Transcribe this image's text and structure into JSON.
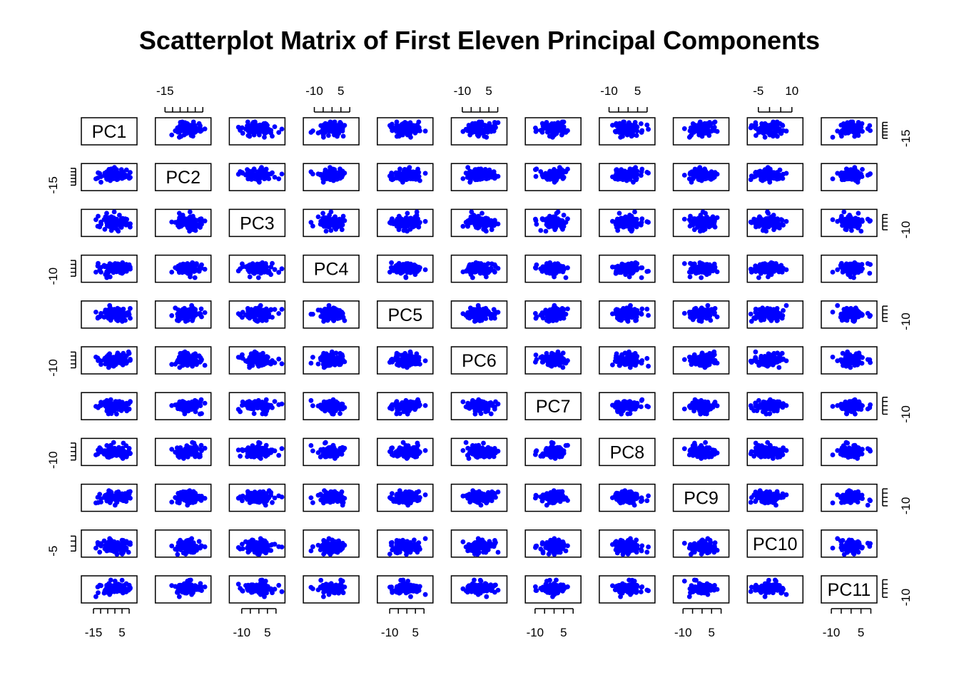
{
  "chart_data": {
    "type": "scatter",
    "title": "Scatterplot Matrix of First Eleven Principal Components",
    "variables": [
      "PC1",
      "PC2",
      "PC3",
      "PC4",
      "PC5",
      "PC6",
      "PC7",
      "PC8",
      "PC9",
      "PC10",
      "PC11"
    ],
    "point_color": "#0000ff",
    "axes": [
      {
        "name": "PC1",
        "range": [
          -22,
          14
        ],
        "ticks": [
          -15,
          -10,
          -5,
          0,
          5,
          10
        ],
        "tick_labels": [
          "-15",
          "5"
        ],
        "label_values": [
          -15,
          5
        ]
      },
      {
        "name": "PC2",
        "range": [
          -20,
          14
        ],
        "ticks": [
          -15,
          -10,
          -5,
          0,
          5,
          10
        ],
        "tick_labels": [
          "-15"
        ],
        "label_values": [
          -15
        ]
      },
      {
        "name": "PC3",
        "range": [
          -16,
          14
        ],
        "ticks": [
          -10,
          -5,
          0,
          5,
          10
        ],
        "tick_labels": [
          "-10",
          "5"
        ],
        "label_values": [
          -10,
          5
        ]
      },
      {
        "name": "PC4",
        "range": [
          -15,
          14
        ],
        "ticks": [
          -10,
          -5,
          0,
          5,
          10
        ],
        "tick_labels": [
          "-10",
          "5"
        ],
        "label_values": [
          -10,
          5
        ]
      },
      {
        "name": "PC5",
        "range": [
          -16,
          14
        ],
        "ticks": [
          -10,
          -5,
          0,
          5,
          10
        ],
        "tick_labels": [
          "-10",
          "5"
        ],
        "label_values": [
          -10,
          5
        ]
      },
      {
        "name": "PC6",
        "range": [
          -15,
          14
        ],
        "ticks": [
          -10,
          -5,
          0,
          5,
          10
        ],
        "tick_labels": [
          "-10",
          "5"
        ],
        "label_values": [
          -10,
          5
        ]
      },
      {
        "name": "PC7",
        "range": [
          -14,
          13
        ],
        "ticks": [
          -10,
          -5,
          0,
          5,
          10
        ],
        "tick_labels": [
          "-10",
          "5"
        ],
        "label_values": [
          -10,
          5
        ]
      },
      {
        "name": "PC8",
        "range": [
          -14,
          13
        ],
        "ticks": [
          -10,
          -5,
          0,
          5,
          10
        ],
        "tick_labels": [
          "-10",
          "5"
        ],
        "label_values": [
          -10,
          5
        ]
      },
      {
        "name": "PC9",
        "range": [
          -14,
          13
        ],
        "ticks": [
          -10,
          -5,
          0,
          5,
          10
        ],
        "tick_labels": [
          "-10",
          "5"
        ],
        "label_values": [
          -10,
          5
        ]
      },
      {
        "name": "PC10",
        "range": [
          -9,
          14
        ],
        "ticks": [
          -5,
          0,
          5,
          10
        ],
        "tick_labels": [
          "-5",
          "10"
        ],
        "label_values": [
          -5,
          10
        ]
      },
      {
        "name": "PC11",
        "range": [
          -14,
          12
        ],
        "ticks": [
          -10,
          -5,
          0,
          5,
          10
        ],
        "tick_labels": [
          "-10",
          "5"
        ],
        "label_values": [
          -10,
          5
        ]
      }
    ],
    "points_per_panel": 100,
    "grid": false,
    "legend": "none"
  }
}
